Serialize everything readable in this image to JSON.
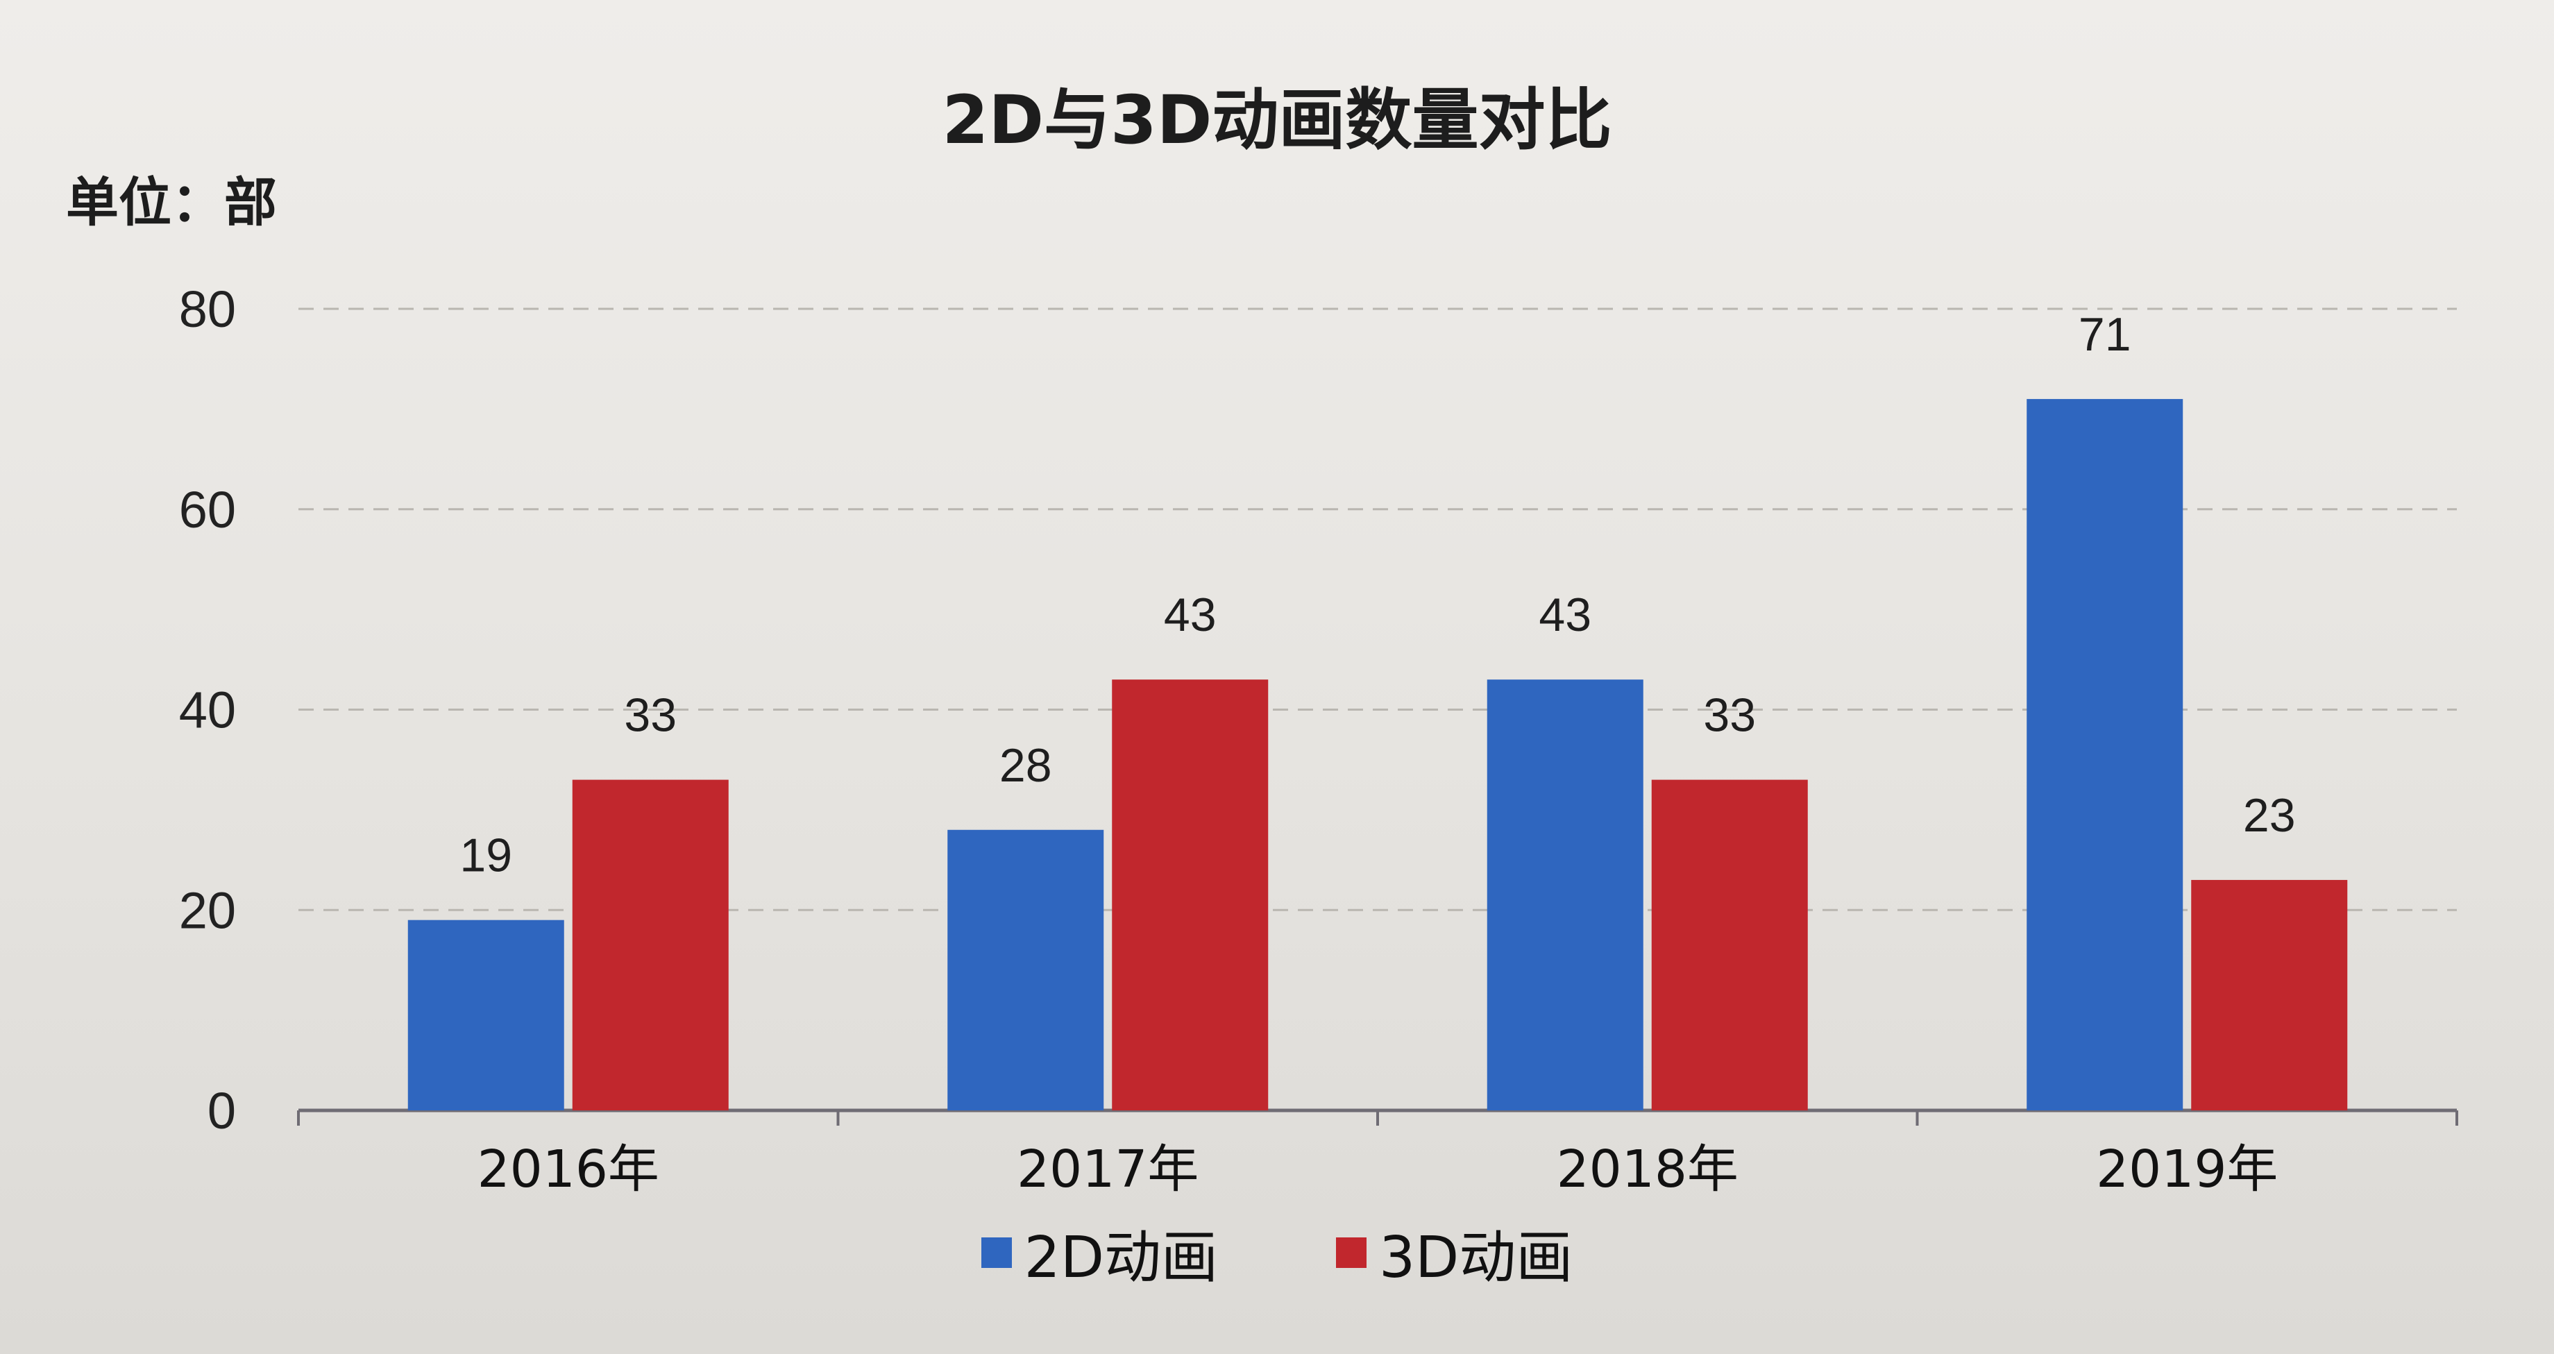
{
  "chart_data": {
    "type": "bar",
    "title": "2D与3D动画数量对比",
    "unit_label": "单位：部",
    "categories": [
      "2016年",
      "2017年",
      "2018年",
      "2019年"
    ],
    "series": [
      {
        "name": "2D动画",
        "values": [
          19,
          28,
          43,
          71
        ],
        "color": "#2f66bf"
      },
      {
        "name": "3D动画",
        "values": [
          33,
          43,
          33,
          23
        ],
        "color": "#c1272d"
      }
    ],
    "ylim": [
      0,
      80
    ],
    "yticks": [
      0,
      20,
      40,
      60,
      80
    ],
    "grid": true,
    "legend_position": "bottom-center"
  }
}
